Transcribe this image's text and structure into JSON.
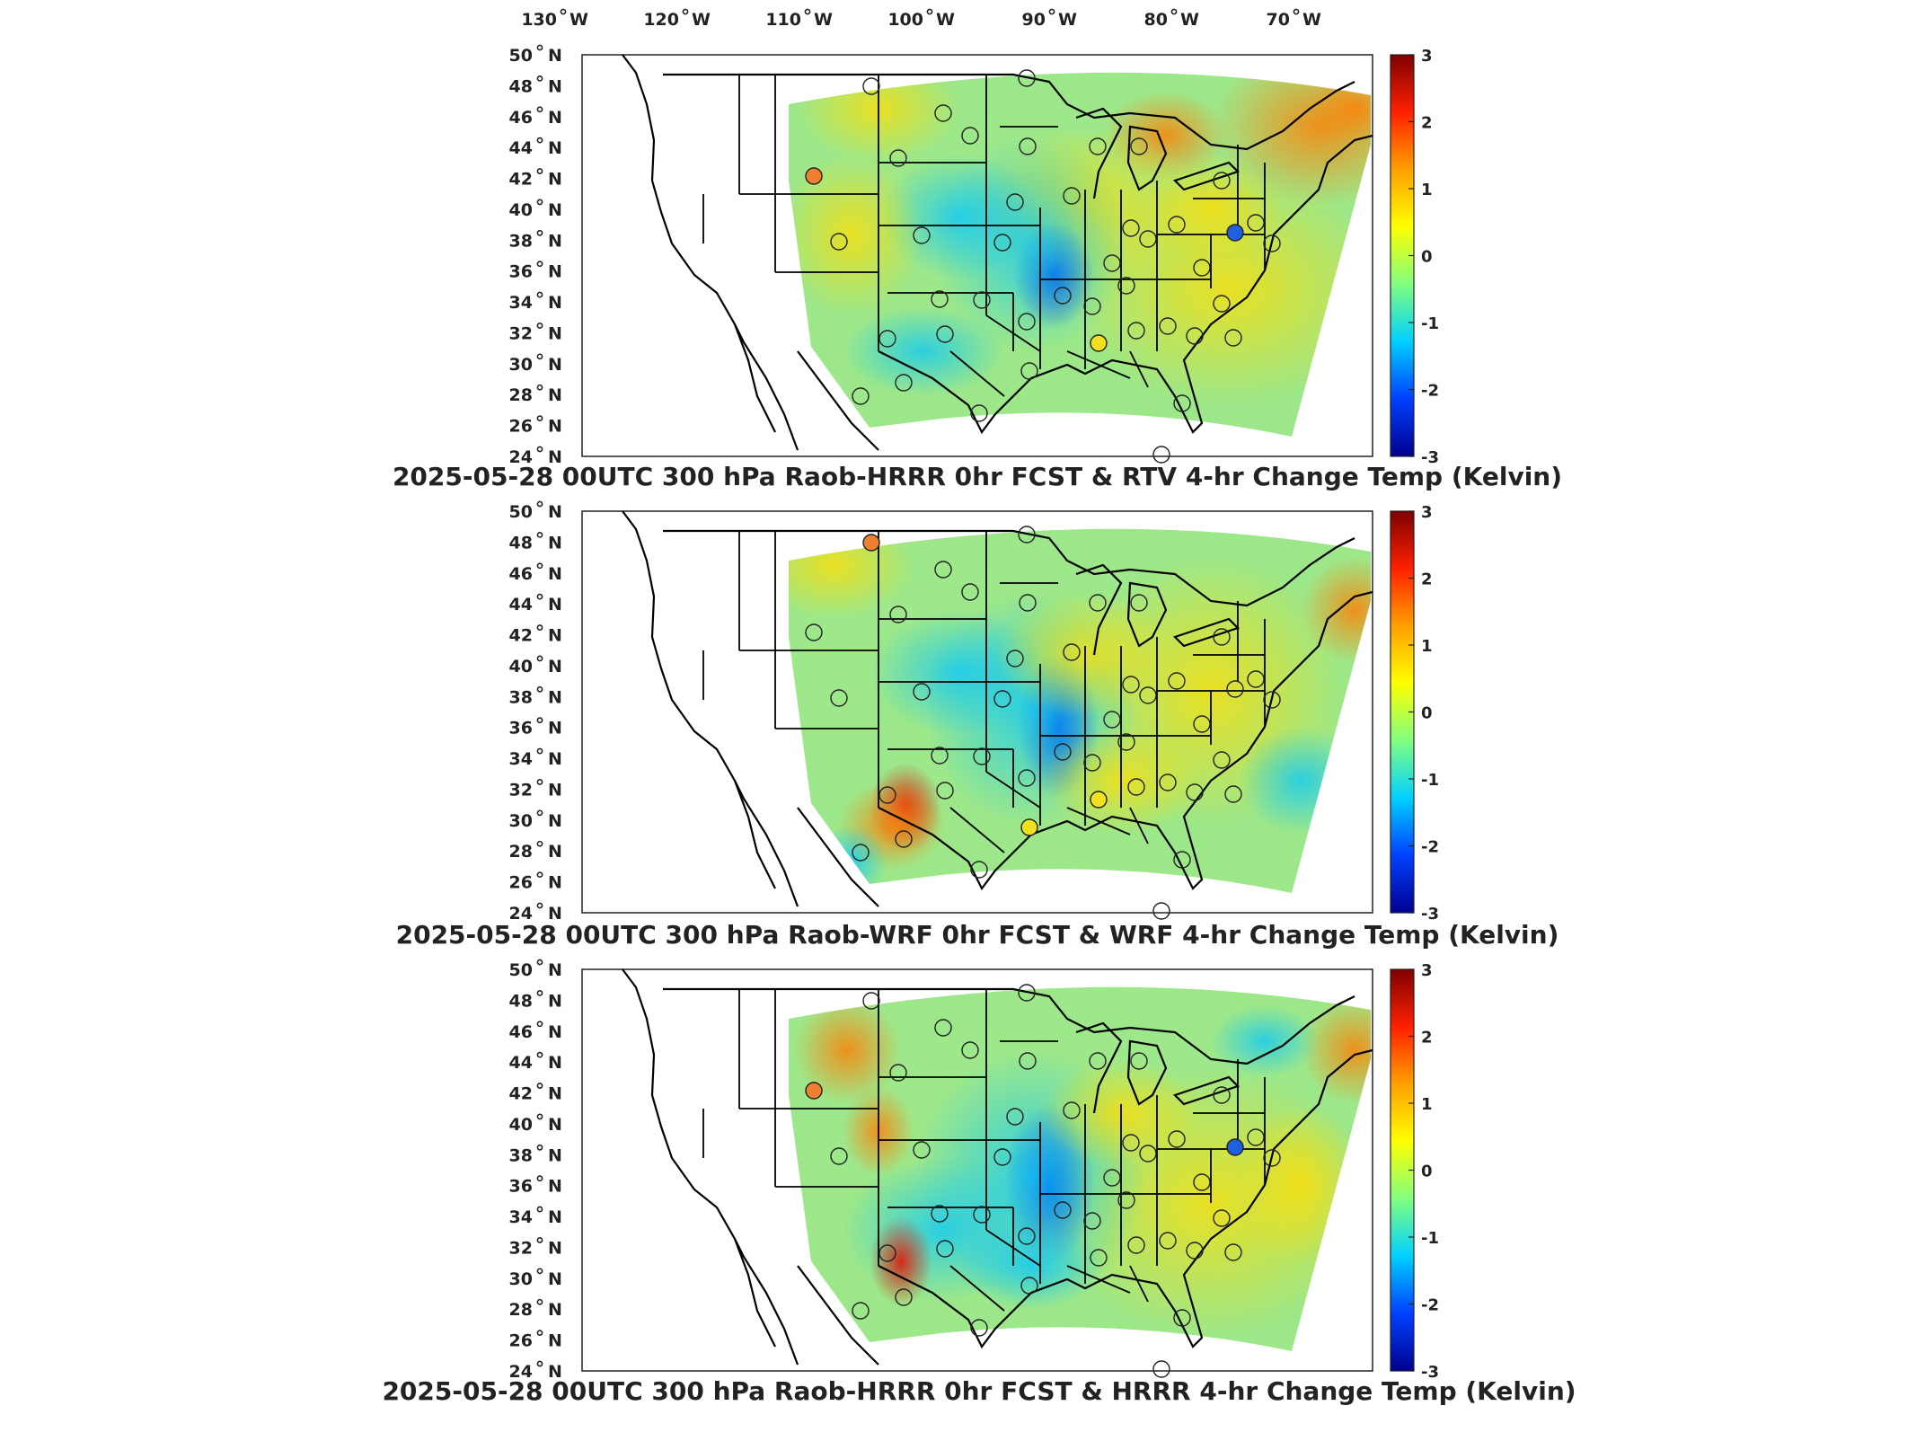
{
  "top_lon_labels": [
    {
      "deg": "130",
      "hemi": "W"
    },
    {
      "deg": "120",
      "hemi": "W"
    },
    {
      "deg": "110",
      "hemi": "W"
    },
    {
      "deg": "100",
      "hemi": "W"
    },
    {
      "deg": "90",
      "hemi": "W"
    },
    {
      "deg": "80",
      "hemi": "W"
    },
    {
      "deg": "70",
      "hemi": "W"
    }
  ],
  "lat_labels": [
    {
      "deg": "50",
      "hemi": "N"
    },
    {
      "deg": "48",
      "hemi": "N"
    },
    {
      "deg": "46",
      "hemi": "N"
    },
    {
      "deg": "44",
      "hemi": "N"
    },
    {
      "deg": "42",
      "hemi": "N"
    },
    {
      "deg": "40",
      "hemi": "N"
    },
    {
      "deg": "38",
      "hemi": "N"
    },
    {
      "deg": "36",
      "hemi": "N"
    },
    {
      "deg": "34",
      "hemi": "N"
    },
    {
      "deg": "32",
      "hemi": "N"
    },
    {
      "deg": "30",
      "hemi": "N"
    },
    {
      "deg": "28",
      "hemi": "N"
    },
    {
      "deg": "26",
      "hemi": "N"
    },
    {
      "deg": "24",
      "hemi": "N"
    }
  ],
  "colorbar": {
    "ticks": [
      "3",
      "2",
      "1",
      "0",
      "-1",
      "-2",
      "-3"
    ],
    "stops": [
      "#7f0000",
      "#ff2000",
      "#ffa000",
      "#ffff00",
      "#80ff80",
      "#00d0ff",
      "#0040ff",
      "#00008f"
    ]
  },
  "panels": [
    {
      "title": "2025-05-28 00UTC 300 hPa Raob-HRRR 0hr FCST & RTV 4-hr Change Temp (Kelvin)"
    },
    {
      "title": "2025-05-28 00UTC 300 hPa Raob-WRF 0hr FCST & WRF 4-hr Change Temp (Kelvin)"
    },
    {
      "title": "2025-05-28 00UTC 300 hPa Raob-HRRR 0hr FCST & HRRR 4-hr Change Temp (Kelvin)"
    }
  ]
}
